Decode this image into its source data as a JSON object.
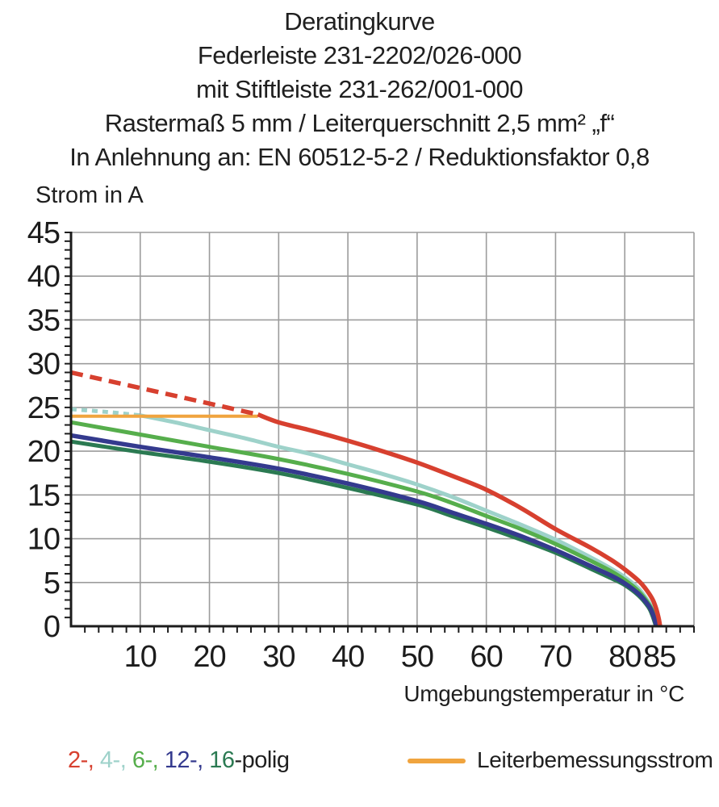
{
  "header": {
    "lines": [
      "Deratingkurve",
      "Federleiste 231-2202/026-000",
      "mit Stiftleiste 231-262/001-000",
      "Rastermaß 5 mm / Leiterquerschnitt 2,5 mm² „f“",
      "In Anlehnung an: EN 60512-5-2 / Reduktionsfaktor 0,8"
    ]
  },
  "colors": {
    "red": "#d7402f",
    "cyan": "#9ed2ca",
    "green": "#56ae4c",
    "navy": "#343a8e",
    "dark_green": "#2b7a52",
    "orange": "#f0a43e",
    "grid": "#9c9c9c",
    "axis": "#1c1c1c",
    "text": "#1f1f1f"
  },
  "legend": {
    "pole_entries": [
      {
        "text": "2-, ",
        "color_key": "red"
      },
      {
        "text": "4-, ",
        "color_key": "cyan"
      },
      {
        "text": "6-, ",
        "color_key": "green"
      },
      {
        "text": "12-, ",
        "color_key": "navy"
      },
      {
        "text": "16",
        "color_key": "dark_green"
      }
    ],
    "pole_suffix": "-polig",
    "rated_current_label": "Leiterbemessungsstrom"
  },
  "chart_data": {
    "type": "line",
    "title": "Deratingkurve",
    "xlabel": "Umgebungstemperatur in °C",
    "ylabel": "Strom in A",
    "x_range": [
      0,
      90
    ],
    "y_range": [
      0,
      45
    ],
    "x_ticks": [
      10,
      20,
      30,
      40,
      50,
      60,
      70,
      80,
      85
    ],
    "y_ticks": [
      0,
      5,
      10,
      15,
      20,
      25,
      30,
      35,
      40,
      45
    ],
    "x_minor_step": 2,
    "y_minor_step": 1,
    "grid": true,
    "legend_position": "bottom",
    "series": [
      {
        "name": "4-polig",
        "color_key": "cyan",
        "width": 5,
        "segments": [
          {
            "style": "dashed",
            "dash": "7 6",
            "points": [
              [
                0,
                24.8
              ],
              [
                5,
                24.5
              ],
              [
                10,
                24.1
              ]
            ]
          },
          {
            "style": "solid",
            "points": [
              [
                10,
                24.1
              ],
              [
                15,
                23.3
              ],
              [
                20,
                22.4
              ],
              [
                25,
                21.5
              ],
              [
                30,
                20.5
              ],
              [
                35,
                19.6
              ],
              [
                40,
                18.5
              ],
              [
                45,
                17.4
              ],
              [
                50,
                16.2
              ],
              [
                55,
                14.8
              ],
              [
                60,
                13.2
              ],
              [
                65,
                11.6
              ],
              [
                70,
                9.9
              ],
              [
                75,
                7.9
              ],
              [
                78,
                6.6
              ],
              [
                80,
                5.6
              ],
              [
                82,
                4.3
              ],
              [
                83.5,
                2.7
              ],
              [
                84.3,
                1.5
              ],
              [
                84.8,
                0
              ]
            ]
          }
        ]
      },
      {
        "name": "6-polig",
        "color_key": "green",
        "width": 5,
        "segments": [
          {
            "style": "solid",
            "points": [
              [
                0,
                23.3
              ],
              [
                10,
                21.9
              ],
              [
                20,
                20.5
              ],
              [
                30,
                19.1
              ],
              [
                40,
                17.4
              ],
              [
                50,
                15.4
              ],
              [
                55,
                14.1
              ],
              [
                60,
                12.6
              ],
              [
                65,
                11.1
              ],
              [
                70,
                9.4
              ],
              [
                75,
                7.5
              ],
              [
                78,
                6.3
              ],
              [
                80,
                5.3
              ],
              [
                82,
                4.0
              ],
              [
                83.5,
                2.5
              ],
              [
                84.2,
                1.4
              ],
              [
                84.7,
                0
              ]
            ]
          }
        ]
      },
      {
        "name": "16-polig",
        "color_key": "dark_green",
        "width": 5,
        "segments": [
          {
            "style": "solid",
            "points": [
              [
                0,
                21.1
              ],
              [
                10,
                19.9
              ],
              [
                20,
                18.8
              ],
              [
                30,
                17.5
              ],
              [
                40,
                15.8
              ],
              [
                50,
                13.9
              ],
              [
                55,
                12.6
              ],
              [
                60,
                11.3
              ],
              [
                65,
                9.9
              ],
              [
                70,
                8.4
              ],
              [
                75,
                6.6
              ],
              [
                78,
                5.5
              ],
              [
                80,
                4.7
              ],
              [
                82,
                3.5
              ],
              [
                83.4,
                2.2
              ],
              [
                84,
                1.2
              ],
              [
                84.5,
                0
              ]
            ]
          }
        ]
      },
      {
        "name": "12-polig",
        "color_key": "navy",
        "width": 5.5,
        "segments": [
          {
            "style": "solid",
            "points": [
              [
                0,
                21.8
              ],
              [
                10,
                20.5
              ],
              [
                20,
                19.3
              ],
              [
                30,
                18.0
              ],
              [
                40,
                16.3
              ],
              [
                50,
                14.3
              ],
              [
                55,
                13.0
              ],
              [
                60,
                11.7
              ],
              [
                65,
                10.3
              ],
              [
                70,
                8.7
              ],
              [
                75,
                6.9
              ],
              [
                78,
                5.8
              ],
              [
                80,
                4.9
              ],
              [
                82,
                3.7
              ],
              [
                83.5,
                2.3
              ],
              [
                84.1,
                1.3
              ],
              [
                84.6,
                0
              ]
            ]
          }
        ]
      },
      {
        "name": "Leiterbemessungsstrom",
        "color_key": "orange",
        "width": 4,
        "segments": [
          {
            "style": "solid",
            "points": [
              [
                0,
                24
              ],
              [
                27,
                24
              ]
            ]
          }
        ]
      },
      {
        "name": "2-polig",
        "color_key": "red",
        "width": 5.5,
        "segments": [
          {
            "style": "dashed",
            "dash": "15 9",
            "points": [
              [
                0,
                29
              ],
              [
                27,
                24.2
              ]
            ]
          },
          {
            "style": "solid",
            "points": [
              [
                27,
                24.2
              ],
              [
                30,
                23.3
              ],
              [
                35,
                22.3
              ],
              [
                40,
                21.2
              ],
              [
                45,
                20.0
              ],
              [
                50,
                18.7
              ],
              [
                55,
                17.2
              ],
              [
                60,
                15.6
              ],
              [
                65,
                13.5
              ],
              [
                70,
                11.1
              ],
              [
                75,
                9.0
              ],
              [
                78,
                7.6
              ],
              [
                80,
                6.5
              ],
              [
                82,
                5.2
              ],
              [
                83,
                4.3
              ],
              [
                84,
                3.1
              ],
              [
                84.5,
                2.1
              ],
              [
                84.9,
                0.9
              ],
              [
                85.1,
                0
              ]
            ]
          }
        ]
      }
    ]
  }
}
